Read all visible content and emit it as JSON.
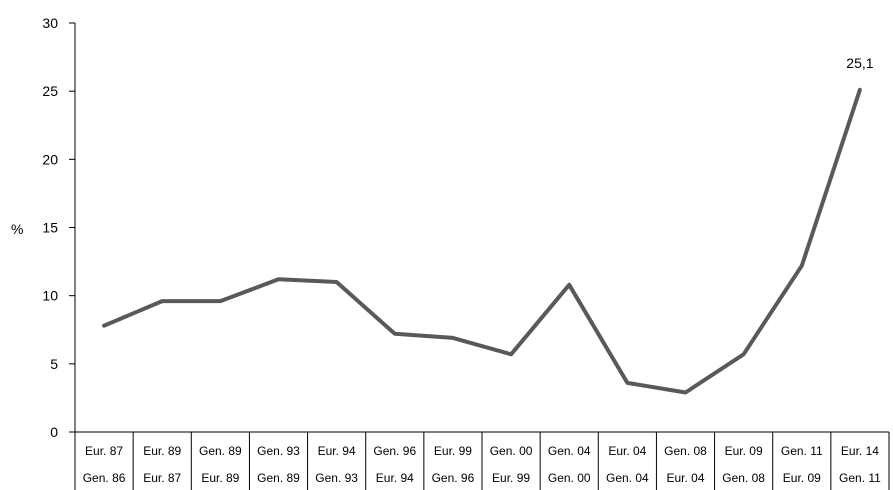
{
  "chart_data": {
    "type": "line",
    "ylabel": "%",
    "ylim": [
      0,
      30
    ],
    "yticks": [
      0,
      5,
      10,
      15,
      20,
      25,
      30
    ],
    "categories_row1": [
      "Eur. 87",
      "Eur. 89",
      "Gen. 89",
      "Gen. 93",
      "Eur. 94",
      "Gen. 96",
      "Eur. 99",
      "Gen. 00",
      "Gen. 04",
      "Eur. 04",
      "Gen. 08",
      "Eur. 09",
      "Gen. 11",
      "Eur. 14"
    ],
    "categories_row2": [
      "Gen. 86",
      "Eur. 87",
      "Eur. 89",
      "Gen. 89",
      "Gen. 93",
      "Eur. 94",
      "Gen. 96",
      "Eur. 99",
      "Gen. 00",
      "Gen. 04",
      "Eur. 04",
      "Gen. 08",
      "Eur. 09",
      "Gen. 11"
    ],
    "values": [
      7.8,
      9.6,
      9.6,
      11.2,
      11.0,
      7.2,
      6.9,
      5.7,
      10.8,
      3.6,
      2.9,
      5.7,
      12.2,
      25.1
    ],
    "data_labels": [
      {
        "index": 13,
        "text": "25,1"
      }
    ],
    "line_color": "#595959",
    "grid": false,
    "legend": "none"
  }
}
